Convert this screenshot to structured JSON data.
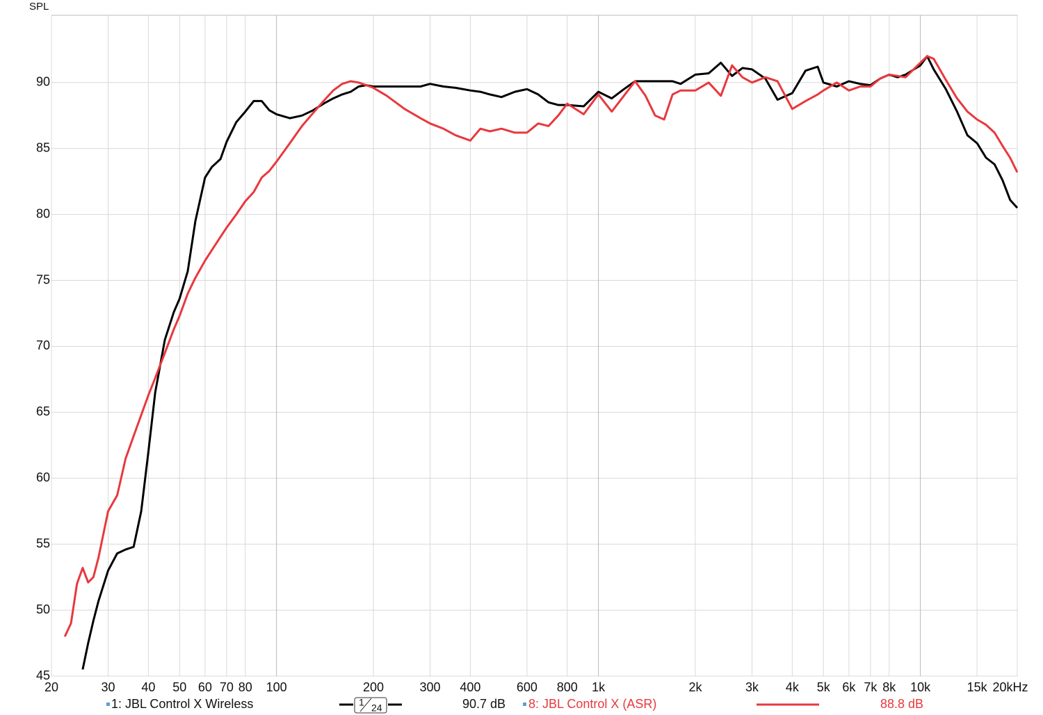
{
  "chart_data": {
    "type": "line",
    "y_axis_label": "SPL",
    "log_x": true,
    "grid": true,
    "xlim": [
      20,
      20000
    ],
    "ylim": [
      45,
      95.1
    ],
    "yticks": [
      45,
      50,
      55,
      60,
      65,
      70,
      75,
      80,
      85,
      90
    ],
    "xticks": [
      20,
      30,
      40,
      50,
      60,
      70,
      80,
      100,
      200,
      300,
      400,
      600,
      800,
      {
        "value": 1000,
        "label": "1k"
      },
      {
        "value": 2000,
        "label": "2k"
      },
      {
        "value": 3000,
        "label": "3k"
      },
      {
        "value": 4000,
        "label": "4k"
      },
      {
        "value": 5000,
        "label": "5k"
      },
      {
        "value": 6000,
        "label": "6k"
      },
      {
        "value": 7000,
        "label": "7k"
      },
      {
        "value": 8000,
        "label": "8k"
      },
      {
        "value": 10000,
        "label": "10k"
      },
      {
        "value": 15000,
        "label": "15k"
      },
      {
        "value": 20000,
        "label": "20kHz"
      }
    ],
    "x": [
      22,
      23,
      24,
      25,
      26,
      27,
      28,
      30,
      32,
      34,
      36,
      38,
      40,
      42,
      45,
      48,
      50,
      53,
      56,
      60,
      63,
      67,
      70,
      75,
      80,
      85,
      90,
      95,
      100,
      110,
      120,
      130,
      140,
      150,
      160,
      170,
      180,
      190,
      200,
      220,
      250,
      280,
      300,
      330,
      360,
      400,
      430,
      460,
      500,
      550,
      600,
      650,
      700,
      750,
      800,
      900,
      1000,
      1100,
      1200,
      1300,
      1400,
      1500,
      1600,
      1700,
      1800,
      2000,
      2200,
      2400,
      2600,
      2800,
      3000,
      3300,
      3600,
      4000,
      4400,
      4800,
      5000,
      5500,
      6000,
      6500,
      7000,
      7500,
      8000,
      8500,
      9000,
      10000,
      10500,
      11000,
      12000,
      13000,
      14000,
      15000,
      16000,
      17000,
      18000,
      19000,
      20000
    ],
    "smoothing": {
      "numerator": "1",
      "denominator": "24"
    },
    "series": [
      {
        "name": "1: JBL Control X Wireless",
        "color": "#000000",
        "level": "90.7 dB",
        "values": [
          null,
          null,
          null,
          45.5,
          47.5,
          49.2,
          50.7,
          53,
          54.3,
          54.6,
          54.8,
          57.5,
          62,
          66.5,
          70.5,
          72.6,
          73.6,
          75.7,
          79.5,
          82.8,
          83.6,
          84.2,
          85.5,
          87,
          87.8,
          88.6,
          88.6,
          87.9,
          87.6,
          87.3,
          87.5,
          87.9,
          88.4,
          88.8,
          89.1,
          89.3,
          89.7,
          89.8,
          89.7,
          89.7,
          89.7,
          89.7,
          89.9,
          89.7,
          89.6,
          89.4,
          89.3,
          89.1,
          88.9,
          89.3,
          89.5,
          89.1,
          88.5,
          88.3,
          88.3,
          88.2,
          89.3,
          88.8,
          89.5,
          90.1,
          90.1,
          90.1,
          90.1,
          90.1,
          89.9,
          90.6,
          90.7,
          91.5,
          90.5,
          91.1,
          91.0,
          90.3,
          88.7,
          89.2,
          90.9,
          91.2,
          90.0,
          89.7,
          90.1,
          89.9,
          89.8,
          90.3,
          90.6,
          90.4,
          90.6,
          91.3,
          92.0,
          91.0,
          89.5,
          87.8,
          86.0,
          85.4,
          84.3,
          83.8,
          82.6,
          81.1,
          80.5
        ]
      },
      {
        "name": "8: JBL Control X (ASR)",
        "color": "#e8383d",
        "level": "88.8 dB",
        "values": [
          48.0,
          49,
          52,
          53.2,
          52.1,
          52.5,
          54,
          57.5,
          58.7,
          61.5,
          63.2,
          64.8,
          66.3,
          67.6,
          69.5,
          71.3,
          72.3,
          74,
          75.2,
          76.5,
          77.3,
          78.3,
          79,
          80,
          81,
          81.7,
          82.8,
          83.3,
          84,
          85.4,
          86.7,
          87.7,
          88.6,
          89.4,
          89.9,
          90.1,
          90,
          89.8,
          89.6,
          89.0,
          88.0,
          87.3,
          86.9,
          86.5,
          86.0,
          85.6,
          86.5,
          86.3,
          86.5,
          86.2,
          86.2,
          86.9,
          86.7,
          87.5,
          88.4,
          87.6,
          89.1,
          87.8,
          89.0,
          90.1,
          89.0,
          87.5,
          87.2,
          89.1,
          89.4,
          89.4,
          90.0,
          89.0,
          91.3,
          90.4,
          90.0,
          90.4,
          90.1,
          88.0,
          88.6,
          89.1,
          89.4,
          90.0,
          89.4,
          89.7,
          89.7,
          90.3,
          90.6,
          90.5,
          90.4,
          91.5,
          92.0,
          91.8,
          90.2,
          88.8,
          87.8,
          87.2,
          86.8,
          86.2,
          85.2,
          84.3,
          83.2
        ]
      }
    ]
  }
}
